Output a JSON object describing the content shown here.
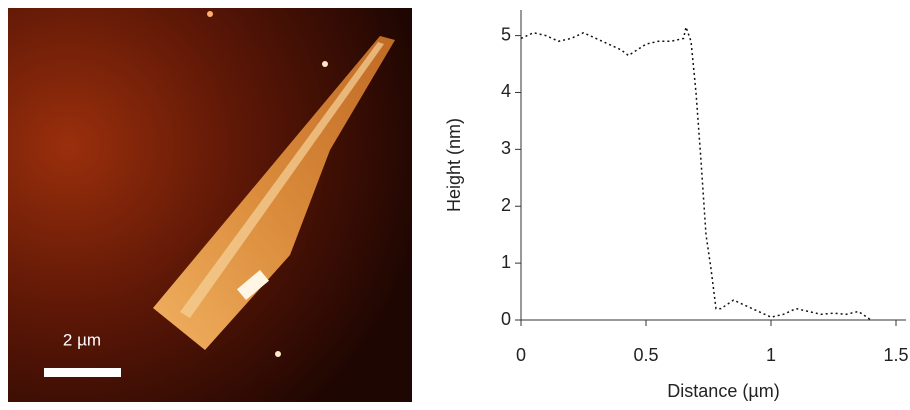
{
  "chart_data": {
    "type": "line",
    "image_scale_label": "2 µm",
    "x_label": "Distance (µm)",
    "y_label": "Height (nm)",
    "xlim": [
      0,
      1.54
    ],
    "ylim": [
      0,
      5.45
    ],
    "xticks": [
      0,
      0.5,
      1,
      1.5
    ],
    "yticks": [
      0,
      1,
      2,
      3,
      4,
      5
    ],
    "color": "#111111",
    "line_style": "dotted",
    "x": [
      0,
      0.05,
      0.1,
      0.15,
      0.2,
      0.25,
      0.3,
      0.35,
      0.4,
      0.43,
      0.5,
      0.55,
      0.6,
      0.65,
      0.66,
      0.68,
      0.7,
      0.72,
      0.74,
      0.76,
      0.78,
      0.8,
      0.85,
      0.9,
      0.95,
      1.0,
      1.05,
      1.1,
      1.15,
      1.2,
      1.25,
      1.3,
      1.35,
      1.4
    ],
    "values": [
      4.95,
      5.05,
      5.0,
      4.9,
      4.95,
      5.05,
      4.95,
      4.85,
      4.75,
      4.65,
      4.85,
      4.9,
      4.9,
      4.95,
      5.15,
      4.9,
      4.0,
      2.8,
      1.5,
      0.9,
      0.2,
      0.2,
      0.35,
      0.25,
      0.15,
      0.05,
      0.1,
      0.2,
      0.15,
      0.1,
      0.12,
      0.1,
      0.15,
      0.0
    ]
  }
}
